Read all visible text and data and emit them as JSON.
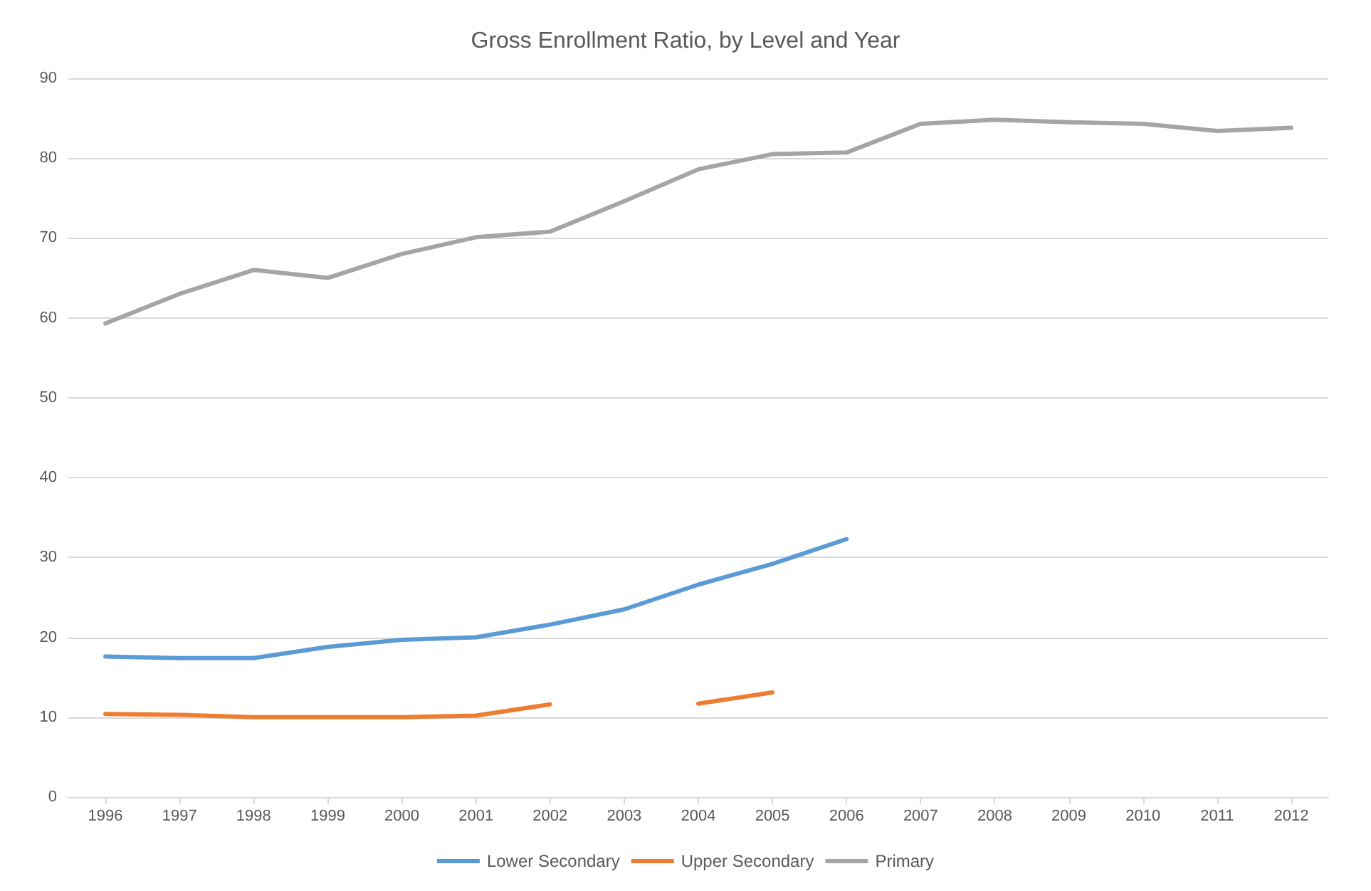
{
  "chart_data": {
    "type": "line",
    "title": "Gross Enrollment Ratio, by Level and Year",
    "categories": [
      "1996",
      "1997",
      "1998",
      "1999",
      "2000",
      "2001",
      "2002",
      "2003",
      "2004",
      "2005",
      "2006",
      "2007",
      "2008",
      "2009",
      "2010",
      "2011",
      "2012"
    ],
    "series": [
      {
        "name": "Lower Secondary",
        "color": "#5b9bd5",
        "values": [
          17.6,
          17.4,
          17.4,
          18.8,
          19.7,
          20,
          21.6,
          23.5,
          26.6,
          29.2,
          32.3,
          null,
          null,
          null,
          null,
          null,
          null
        ]
      },
      {
        "name": "Upper Secondary",
        "color": "#ed7d31",
        "values": [
          10.4,
          10.3,
          10,
          10,
          10,
          10.2,
          11.6,
          null,
          11.7,
          13.1,
          null,
          null,
          null,
          null,
          null,
          null,
          null
        ]
      },
      {
        "name": "Primary",
        "color": "#a5a5a5",
        "values": [
          59.3,
          63,
          66,
          65,
          68,
          70.1,
          70.8,
          74.6,
          78.6,
          80.5,
          80.7,
          84.3,
          84.8,
          84.5,
          84.3,
          83.4,
          83.8
        ]
      }
    ],
    "ylim": [
      0,
      90
    ],
    "yticks": [
      0,
      10,
      20,
      30,
      40,
      50,
      60,
      70,
      80,
      90
    ],
    "grid": "y",
    "legend": "bottom",
    "marker": "none",
    "line_style": "solid"
  }
}
